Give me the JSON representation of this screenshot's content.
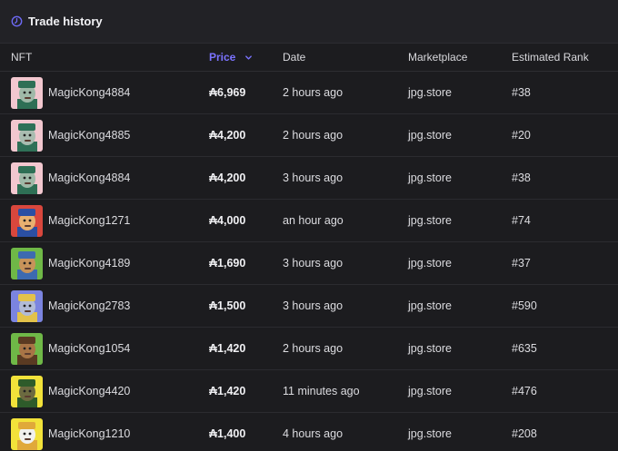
{
  "header": {
    "title": "Trade history",
    "icon": "clock-icon",
    "icon_color": "#6e6af5"
  },
  "columns": {
    "nft": "NFT",
    "price": "Price",
    "date": "Date",
    "marketplace": "Marketplace",
    "rank": "Estimated Rank"
  },
  "rows": [
    {
      "name": "MagicKong4884",
      "price": "₳6,969",
      "date": "2 hours ago",
      "marketplace": "jpg.store",
      "rank": "#38",
      "bg": "#f2c7cf",
      "face": "#9fb9a8",
      "hat": "#2e6f55"
    },
    {
      "name": "MagicKong4885",
      "price": "₳4,200",
      "date": "2 hours ago",
      "marketplace": "jpg.store",
      "rank": "#20",
      "bg": "#f2c7cf",
      "face": "#a9bcb0",
      "hat": "#2f7057"
    },
    {
      "name": "MagicKong4884",
      "price": "₳4,200",
      "date": "3 hours ago",
      "marketplace": "jpg.store",
      "rank": "#38",
      "bg": "#f2c7cf",
      "face": "#9fb9a8",
      "hat": "#2e6f55"
    },
    {
      "name": "MagicKong1271",
      "price": "₳4,000",
      "date": "an hour ago",
      "marketplace": "jpg.store",
      "rank": "#74",
      "bg": "#d9473d",
      "face": "#e8b070",
      "hat": "#2b4fa3"
    },
    {
      "name": "MagicKong4189",
      "price": "₳1,690",
      "date": "3 hours ago",
      "marketplace": "jpg.store",
      "rank": "#37",
      "bg": "#6fb847",
      "face": "#c7935a",
      "hat": "#3d6ab0"
    },
    {
      "name": "MagicKong2783",
      "price": "₳1,500",
      "date": "3 hours ago",
      "marketplace": "jpg.store",
      "rank": "#590",
      "bg": "#7b84e0",
      "face": "#b2bbd6",
      "hat": "#e3c24a"
    },
    {
      "name": "MagicKong1054",
      "price": "₳1,420",
      "date": "2 hours ago",
      "marketplace": "jpg.store",
      "rank": "#635",
      "bg": "#6fb847",
      "face": "#a87446",
      "hat": "#5a3a22"
    },
    {
      "name": "MagicKong4420",
      "price": "₳1,420",
      "date": "11 minutes ago",
      "marketplace": "jpg.store",
      "rank": "#476",
      "bg": "#f2e23a",
      "face": "#6c6a40",
      "hat": "#2e5b2a"
    },
    {
      "name": "MagicKong1210",
      "price": "₳1,400",
      "date": "4 hours ago",
      "marketplace": "jpg.store",
      "rank": "#208",
      "bg": "#f2e23a",
      "face": "#f1f1ee",
      "hat": "#e0a93a"
    }
  ]
}
